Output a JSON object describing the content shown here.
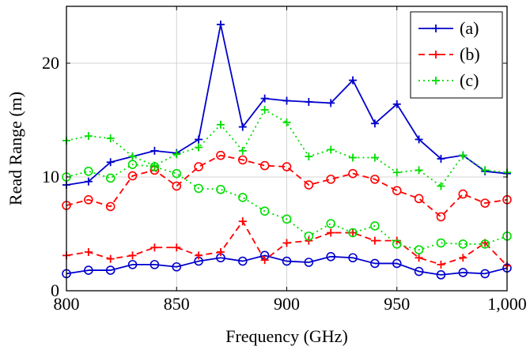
{
  "chart_data": {
    "type": "line",
    "xlabel": "Frequency (GHz)",
    "ylabel": "Read Range (m)",
    "xlim": [
      800,
      1000
    ],
    "ylim": [
      0,
      25
    ],
    "xticks": [
      800,
      850,
      900,
      950,
      1000
    ],
    "xtick_labels": [
      "800",
      "850",
      "900",
      "950",
      "1,000"
    ],
    "yticks": [
      0,
      10,
      20
    ],
    "ytick_labels": [
      "0",
      "10",
      "20"
    ],
    "grid": true,
    "legend_position": "top-right",
    "x": [
      800,
      810,
      820,
      830,
      840,
      850,
      860,
      870,
      880,
      890,
      900,
      910,
      920,
      930,
      940,
      950,
      960,
      970,
      980,
      990,
      1000
    ],
    "series": [
      {
        "name": "(a)",
        "group": "a",
        "color": "#0000cc",
        "dash": "solid",
        "marker": "plus",
        "values": [
          9.3,
          9.6,
          11.3,
          11.8,
          12.3,
          12.1,
          13.3,
          23.4,
          14.4,
          16.9,
          16.7,
          16.6,
          16.5,
          18.5,
          14.7,
          16.4,
          13.3,
          11.6,
          11.9,
          10.5,
          10.3
        ]
      },
      {
        "name": "",
        "group": "a",
        "color": "#0000cc",
        "dash": "solid",
        "marker": "circle",
        "values": [
          1.5,
          1.8,
          1.8,
          2.3,
          2.3,
          2.1,
          2.6,
          2.9,
          2.6,
          3.1,
          2.6,
          2.5,
          3.0,
          2.9,
          2.4,
          2.4,
          1.7,
          1.4,
          1.6,
          1.5,
          2.0
        ]
      },
      {
        "name": "(b)",
        "group": "b",
        "color": "#ff0000",
        "dash": "dashed",
        "marker": "plus",
        "values": [
          3.1,
          3.4,
          2.8,
          3.1,
          3.8,
          3.8,
          3.1,
          3.4,
          6.1,
          2.7,
          4.2,
          4.4,
          5.1,
          5.1,
          4.4,
          4.4,
          2.9,
          2.3,
          2.9,
          4.2,
          2.2
        ]
      },
      {
        "name": "",
        "group": "b",
        "color": "#ff0000",
        "dash": "dashed",
        "marker": "circle",
        "values": [
          7.5,
          8.0,
          7.4,
          10.1,
          10.6,
          9.2,
          10.9,
          11.9,
          11.5,
          11.0,
          10.9,
          9.3,
          9.8,
          10.3,
          9.8,
          8.8,
          8.1,
          6.5,
          8.5,
          7.7,
          8.0
        ]
      },
      {
        "name": "(c)",
        "group": "c",
        "color": "#00dd00",
        "dash": "dotted",
        "marker": "plus",
        "values": [
          13.2,
          13.6,
          13.4,
          11.8,
          11.0,
          12.0,
          12.6,
          14.6,
          12.3,
          15.9,
          14.8,
          11.8,
          12.4,
          11.7,
          11.7,
          10.4,
          10.6,
          9.2,
          11.9,
          10.6,
          10.4
        ]
      },
      {
        "name": "",
        "group": "c",
        "color": "#00dd00",
        "dash": "dotted",
        "marker": "circle",
        "values": [
          10.0,
          10.5,
          9.9,
          11.1,
          10.9,
          10.3,
          9.0,
          8.9,
          8.2,
          7.0,
          6.3,
          4.8,
          5.9,
          5.1,
          5.7,
          4.1,
          3.6,
          4.2,
          4.1,
          4.1,
          4.8
        ]
      }
    ]
  }
}
